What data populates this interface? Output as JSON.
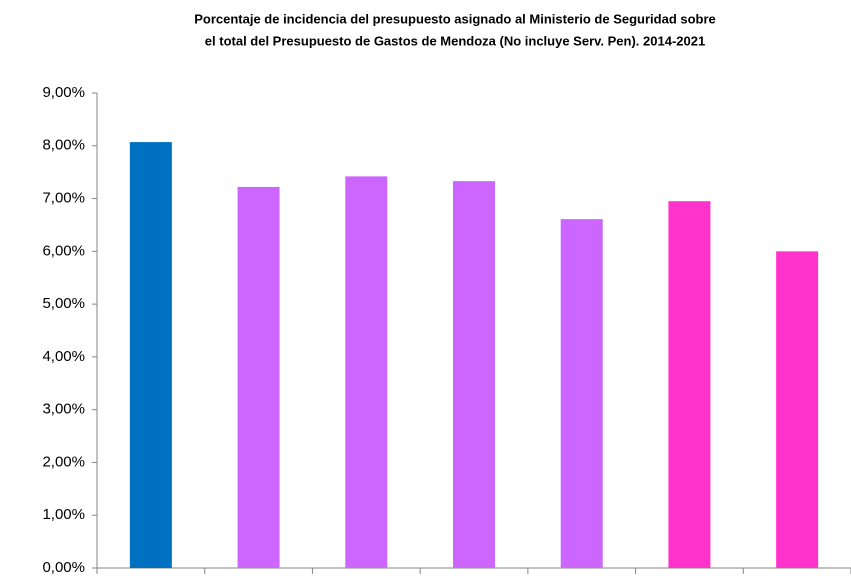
{
  "chart_data": {
    "type": "bar",
    "title": [
      "Porcentaje de incidencia del presupuesto asignado al Ministerio de Seguridad sobre",
      "el total del Presupuesto de Gastos de Mendoza (No incluye Serv. Pen). 2014-2021"
    ],
    "categories": [
      null,
      null,
      null,
      null,
      null,
      null,
      null
    ],
    "values": [
      8.07,
      7.22,
      7.42,
      7.33,
      6.61,
      6.95,
      6.0
    ],
    "colors": [
      "#0070c0",
      "#cc66ff",
      "#cc66ff",
      "#cc66ff",
      "#cc66ff",
      "#ff33cc",
      "#ff33cc"
    ],
    "ylim": [
      0,
      9
    ],
    "yticks": [
      {
        "value": 0,
        "label": "0,00%"
      },
      {
        "value": 1,
        "label": "1,00%"
      },
      {
        "value": 2,
        "label": "2,00%"
      },
      {
        "value": 3,
        "label": "3,00%"
      },
      {
        "value": 4,
        "label": "4,00%"
      },
      {
        "value": 5,
        "label": "5,00%"
      },
      {
        "value": 6,
        "label": "6,00%"
      },
      {
        "value": 7,
        "label": "7,00%"
      },
      {
        "value": 8,
        "label": "8,00%"
      },
      {
        "value": 9,
        "label": "9,00%"
      }
    ],
    "grid": false
  }
}
